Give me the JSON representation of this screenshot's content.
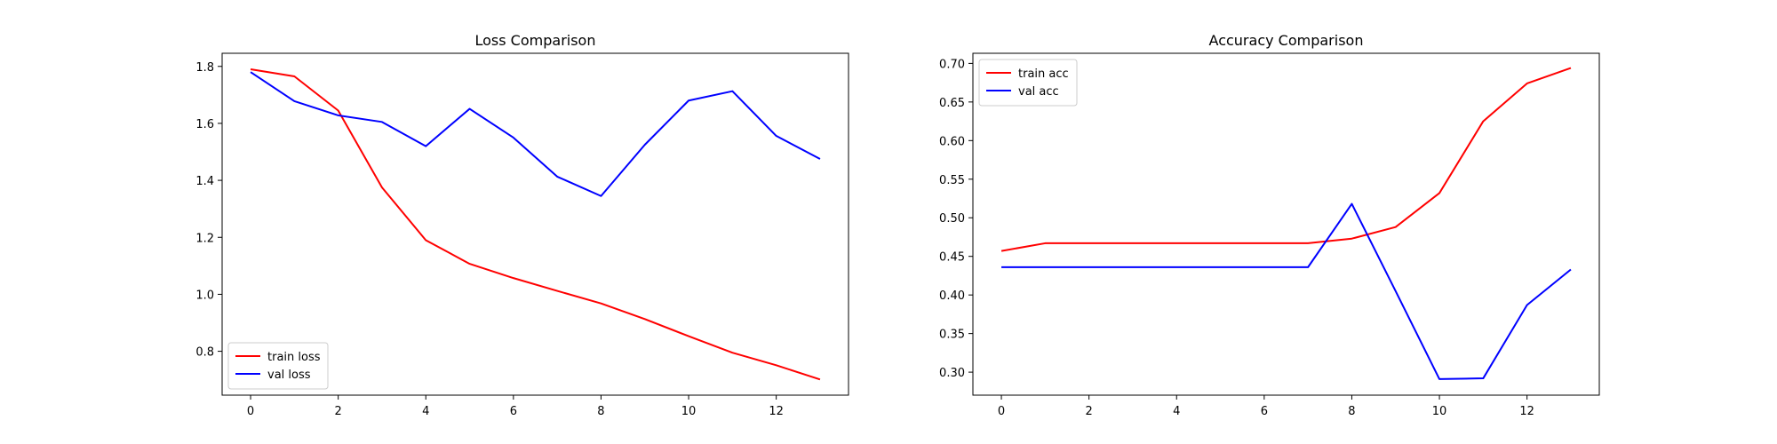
{
  "chart_data": [
    {
      "type": "line",
      "title": "Loss Comparison",
      "xlabel": "",
      "ylabel": "",
      "xlim": [
        -0.65,
        13.65
      ],
      "ylim": [
        0.646,
        1.846
      ],
      "xticks": [
        0,
        2,
        4,
        6,
        8,
        10,
        12
      ],
      "yticks": [
        0.8,
        1.0,
        1.2,
        1.4,
        1.6,
        1.8
      ],
      "ytick_format": 1,
      "grid": false,
      "legend_position": "lower-left",
      "x": [
        0,
        1,
        2,
        3,
        4,
        5,
        6,
        7,
        8,
        9,
        10,
        11,
        12,
        13
      ],
      "series": [
        {
          "name": "train loss",
          "color": "#ff0000",
          "values": [
            1.79,
            1.765,
            1.645,
            1.375,
            1.19,
            1.107,
            1.057,
            1.012,
            0.968,
            0.913,
            0.853,
            0.795,
            0.751,
            0.701
          ]
        },
        {
          "name": "val loss",
          "color": "#0000ff",
          "values": [
            1.78,
            1.678,
            1.628,
            1.605,
            1.52,
            1.651,
            1.55,
            1.413,
            1.345,
            1.525,
            1.68,
            1.713,
            1.556,
            1.475
          ]
        }
      ]
    },
    {
      "type": "line",
      "title": "Accuracy Comparison",
      "xlabel": "",
      "ylabel": "",
      "xlim": [
        -0.65,
        13.65
      ],
      "ylim": [
        0.2702,
        0.7131
      ],
      "xticks": [
        0,
        2,
        4,
        6,
        8,
        10,
        12
      ],
      "yticks": [
        0.3,
        0.35,
        0.4,
        0.45,
        0.5,
        0.55,
        0.6,
        0.65,
        0.7
      ],
      "ytick_format": 2,
      "grid": false,
      "legend_position": "upper-left",
      "x": [
        0,
        1,
        2,
        3,
        4,
        5,
        6,
        7,
        8,
        9,
        10,
        11,
        12,
        13
      ],
      "series": [
        {
          "name": "train acc",
          "color": "#ff0000",
          "values": [
            0.457,
            0.467,
            0.467,
            0.467,
            0.467,
            0.467,
            0.467,
            0.467,
            0.473,
            0.488,
            0.532,
            0.625,
            0.674,
            0.694
          ]
        },
        {
          "name": "val acc",
          "color": "#0000ff",
          "values": [
            0.436,
            0.436,
            0.436,
            0.436,
            0.436,
            0.436,
            0.436,
            0.436,
            0.518,
            0.405,
            0.291,
            0.292,
            0.387,
            0.433
          ]
        }
      ]
    }
  ]
}
